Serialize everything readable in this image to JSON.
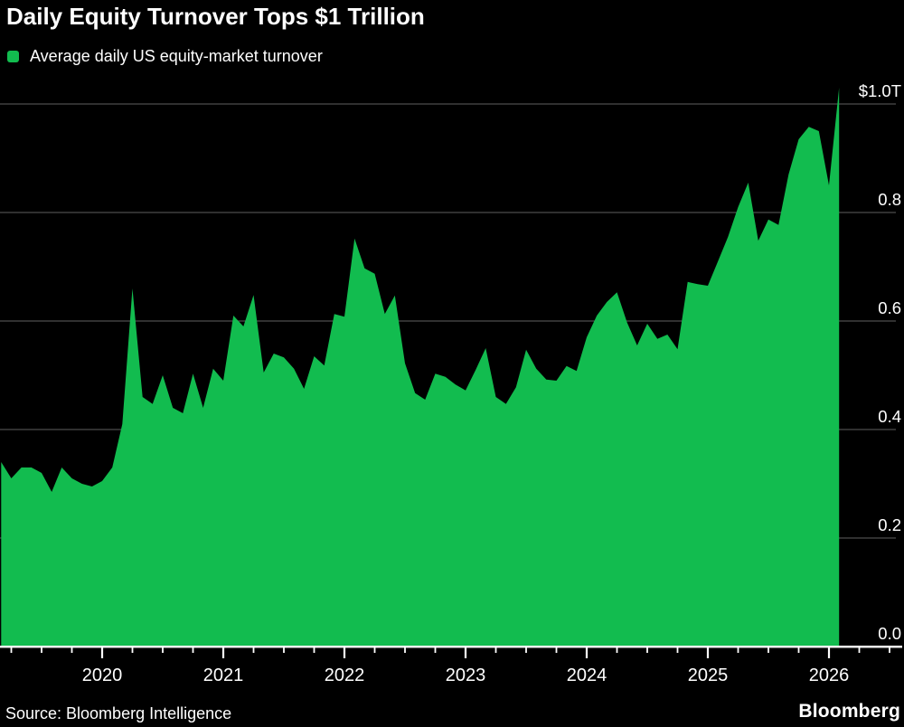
{
  "header": {
    "title": "Daily Equity Turnover Tops $1 Trillion"
  },
  "legend": {
    "label": "Average daily US equity-market turnover",
    "swatch_color": "#12bc4f"
  },
  "footer": {
    "source": "Source: Bloomberg Intelligence",
    "brand": "Bloomberg"
  },
  "colors": {
    "background": "#000000",
    "series_green": "#12bc4f",
    "gridline": "#5f5f5f",
    "axis_line": "#f2f2f2",
    "tick": "#ffffff",
    "text": "#ffffff"
  },
  "chart_data": {
    "type": "area",
    "title": "Daily Equity Turnover Tops $1 Trillion",
    "legend_entries": [
      "Average daily US equity-market turnover"
    ],
    "unit": "USD trillions (average daily US equity-market turnover)",
    "x": [
      "2019-03",
      "2019-04",
      "2019-05",
      "2019-06",
      "2019-07",
      "2019-08",
      "2019-09",
      "2019-10",
      "2019-11",
      "2019-12",
      "2020-01",
      "2020-02",
      "2020-03",
      "2020-04",
      "2020-05",
      "2020-06",
      "2020-07",
      "2020-08",
      "2020-09",
      "2020-10",
      "2020-11",
      "2020-12",
      "2021-01",
      "2021-02",
      "2021-03",
      "2021-04",
      "2021-05",
      "2021-06",
      "2021-07",
      "2021-08",
      "2021-09",
      "2021-10",
      "2021-11",
      "2021-12",
      "2022-01",
      "2022-02",
      "2022-03",
      "2022-04",
      "2022-05",
      "2022-06",
      "2022-07",
      "2022-08",
      "2022-09",
      "2022-10",
      "2022-11",
      "2022-12",
      "2023-01",
      "2023-02",
      "2023-03",
      "2023-04",
      "2023-05",
      "2023-06",
      "2023-07",
      "2023-08",
      "2023-09",
      "2023-10",
      "2023-11",
      "2023-12",
      "2024-01",
      "2024-02",
      "2024-03",
      "2024-04",
      "2024-05",
      "2024-06",
      "2024-07",
      "2024-08",
      "2024-09",
      "2024-10",
      "2024-11",
      "2024-12",
      "2025-01",
      "2025-02",
      "2025-03",
      "2025-04",
      "2025-05",
      "2025-06",
      "2025-07",
      "2025-08",
      "2025-09",
      "2025-10",
      "2025-11",
      "2025-12",
      "2026-01",
      "2026-02"
    ],
    "values": [
      0.34,
      0.31,
      0.33,
      0.33,
      0.32,
      0.285,
      0.33,
      0.31,
      0.3,
      0.295,
      0.305,
      0.33,
      0.41,
      0.66,
      0.46,
      0.447,
      0.5,
      0.44,
      0.43,
      0.503,
      0.44,
      0.512,
      0.49,
      0.61,
      0.59,
      0.648,
      0.505,
      0.54,
      0.533,
      0.512,
      0.475,
      0.535,
      0.518,
      0.613,
      0.608,
      0.752,
      0.697,
      0.687,
      0.613,
      0.647,
      0.522,
      0.467,
      0.455,
      0.503,
      0.497,
      0.483,
      0.472,
      0.51,
      0.55,
      0.46,
      0.447,
      0.478,
      0.547,
      0.512,
      0.492,
      0.49,
      0.517,
      0.508,
      0.57,
      0.61,
      0.635,
      0.653,
      0.597,
      0.555,
      0.595,
      0.567,
      0.575,
      0.548,
      0.672,
      0.668,
      0.665,
      0.71,
      0.755,
      0.81,
      0.855,
      0.748,
      0.787,
      0.777,
      0.87,
      0.935,
      0.958,
      0.95,
      0.85,
      1.03
    ],
    "ylim": [
      0,
      1.05
    ],
    "ytick_values": [
      0,
      0.2,
      0.4,
      0.6,
      0.8,
      1.0
    ],
    "ytick_labels": [
      "0.0",
      "0.2",
      "0.4",
      "0.6",
      "0.8",
      "$1.0T"
    ],
    "xtick_labels": [
      "2020",
      "2021",
      "2022",
      "2023",
      "2024",
      "2025",
      "2026"
    ],
    "grid": "horizontal",
    "legend_position": "top-left",
    "y_axis_side": "right"
  }
}
